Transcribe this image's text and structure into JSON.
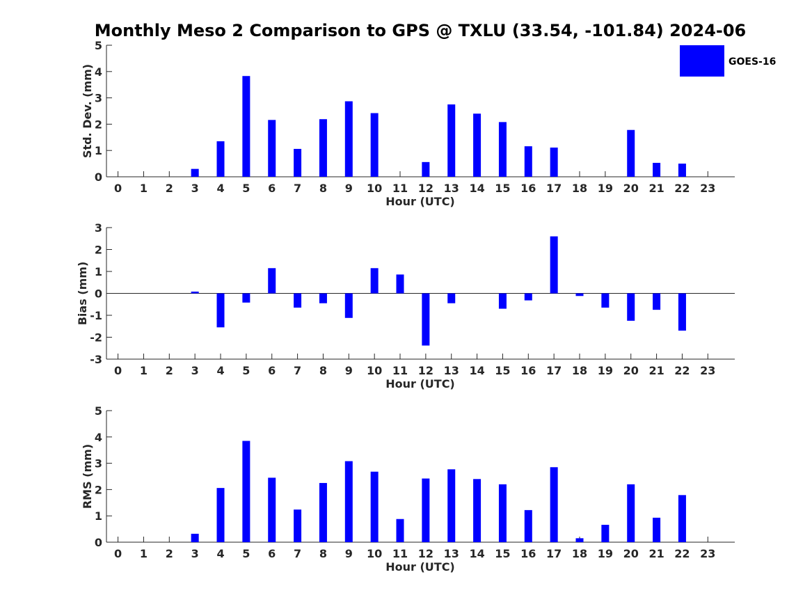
{
  "title": "Monthly Meso 2 Comparison to GPS @ TXLU (33.54, -101.84) 2024-06",
  "colors": {
    "bar": "#0000ff",
    "axis": "#262626"
  },
  "legend": {
    "label": "GOES-16",
    "placement": "top-right"
  },
  "chart_data": [
    {
      "type": "bar",
      "xlabel": "Hour (UTC)",
      "ylabel": "Std. Dev. (mm)",
      "ylim": [
        0,
        5
      ],
      "yticks": [
        "0",
        "1",
        "2",
        "3",
        "4",
        "5"
      ],
      "x": [
        "0",
        "1",
        "2",
        "3",
        "4",
        "5",
        "6",
        "7",
        "8",
        "9",
        "10",
        "11",
        "12",
        "13",
        "14",
        "15",
        "16",
        "17",
        "18",
        "19",
        "20",
        "21",
        "22",
        "23"
      ],
      "series": [
        {
          "name": "GOES-16",
          "values": [
            null,
            null,
            null,
            0.3,
            1.35,
            3.83,
            2.16,
            1.06,
            2.19,
            2.87,
            2.42,
            null,
            0.56,
            2.75,
            2.4,
            2.08,
            1.16,
            1.11,
            null,
            null,
            1.78,
            0.53,
            0.5,
            null
          ]
        }
      ]
    },
    {
      "type": "bar",
      "xlabel": "Hour (UTC)",
      "ylabel": "Bias (mm)",
      "ylim": [
        -3,
        3
      ],
      "yticks": [
        "-3",
        "-2",
        "-1",
        "0",
        "1",
        "2",
        "3"
      ],
      "x": [
        "0",
        "1",
        "2",
        "3",
        "4",
        "5",
        "6",
        "7",
        "8",
        "9",
        "10",
        "11",
        "12",
        "13",
        "14",
        "15",
        "16",
        "17",
        "18",
        "19",
        "20",
        "21",
        "22",
        "23"
      ],
      "series": [
        {
          "name": "GOES-16",
          "values": [
            null,
            null,
            null,
            0.08,
            -1.55,
            -0.42,
            1.15,
            -0.65,
            -0.45,
            -1.12,
            1.15,
            0.86,
            -2.38,
            -0.45,
            null,
            -0.7,
            -0.32,
            2.6,
            -0.12,
            -0.65,
            -1.25,
            -0.75,
            -1.7,
            null
          ]
        }
      ]
    },
    {
      "type": "bar",
      "xlabel": "Hour (UTC)",
      "ylabel": "RMS (mm)",
      "ylim": [
        0,
        5
      ],
      "yticks": [
        "0",
        "1",
        "2",
        "3",
        "4",
        "5"
      ],
      "x": [
        "0",
        "1",
        "2",
        "3",
        "4",
        "5",
        "6",
        "7",
        "8",
        "9",
        "10",
        "11",
        "12",
        "13",
        "14",
        "15",
        "16",
        "17",
        "18",
        "19",
        "20",
        "21",
        "22",
        "23"
      ],
      "series": [
        {
          "name": "GOES-16",
          "values": [
            null,
            null,
            null,
            0.32,
            2.06,
            3.85,
            2.45,
            1.24,
            2.25,
            3.08,
            2.68,
            0.88,
            2.42,
            2.77,
            2.4,
            2.2,
            1.22,
            2.85,
            0.15,
            0.66,
            2.2,
            0.93,
            1.79,
            null
          ]
        }
      ]
    }
  ]
}
